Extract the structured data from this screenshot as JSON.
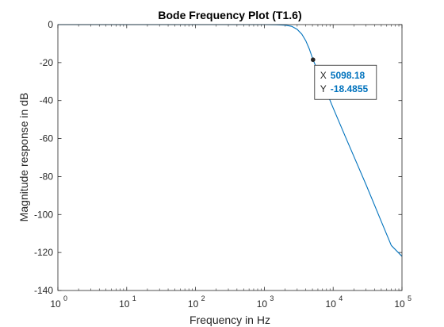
{
  "chart_data": {
    "type": "line",
    "title": "Bode Frequency Plot (T1.6)",
    "xlabel": "Frequency in Hz",
    "ylabel": "Magnitude response in dB",
    "xscale": "log",
    "xlim": [
      1,
      100000
    ],
    "ylim": [
      -140,
      0
    ],
    "x_ticks": [
      1,
      10,
      100,
      1000,
      10000,
      100000
    ],
    "x_tick_labels": [
      {
        "base": "10",
        "exp": "0"
      },
      {
        "base": "10",
        "exp": "1"
      },
      {
        "base": "10",
        "exp": "2"
      },
      {
        "base": "10",
        "exp": "3"
      },
      {
        "base": "10",
        "exp": "4"
      },
      {
        "base": "10",
        "exp": "5"
      }
    ],
    "y_ticks": [
      0,
      -20,
      -40,
      -60,
      -80,
      -100,
      -120,
      -140
    ],
    "y_tick_labels": [
      "0",
      "-20",
      "-40",
      "-60",
      "-80",
      "-100",
      "-120",
      "-140"
    ],
    "grid": false,
    "series": [
      {
        "color": "#0072bd",
        "x": [
          1,
          10,
          100,
          500,
          1000,
          1500,
          2000,
          2500,
          3000,
          3500,
          4000,
          4500,
          5098.18,
          6000,
          7000,
          8000,
          10000,
          15000,
          20000,
          30000,
          50000,
          70000,
          100000
        ],
        "y": [
          0,
          0,
          0,
          0,
          0,
          -0.1,
          -0.3,
          -0.9,
          -2.5,
          -5.0,
          -8.5,
          -12.8,
          -18.4855,
          -24.5,
          -30.3,
          -35.4,
          -43.9,
          -58.9,
          -69.4,
          -84.2,
          -103.6,
          -116.3,
          -122.0
        ]
      }
    ],
    "datatip": {
      "x_label": "X",
      "x_value": "5098.18",
      "y_label": "Y",
      "y_value": "-18.4855",
      "x": 5098.18,
      "y": -18.4855
    }
  }
}
